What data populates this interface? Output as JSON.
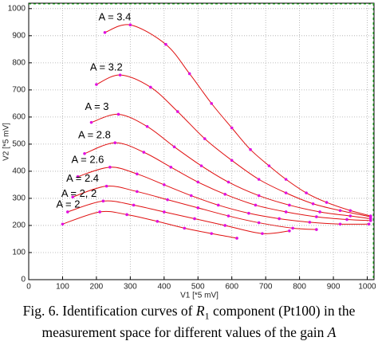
{
  "chart_data": {
    "type": "line",
    "x_label": "V1 [*5 mV]",
    "y_label": "V2 [*5 mV]",
    "xlim": [
      0,
      1020
    ],
    "ylim": [
      0,
      1020
    ],
    "xticks": [
      0,
      100,
      200,
      300,
      400,
      500,
      600,
      700,
      800,
      900,
      1000
    ],
    "yticks": [
      0,
      100,
      200,
      300,
      400,
      500,
      600,
      700,
      800,
      900,
      1000
    ],
    "grid": true,
    "color": "#e01010",
    "marker_color": "#e010e0",
    "series": [
      {
        "name": "A = 3.4",
        "x": [
          225,
          300,
          405,
          475,
          540,
          600,
          655,
          710,
          760,
          820,
          880,
          950,
          1010
        ],
        "values": [
          912,
          940,
          868,
          760,
          650,
          560,
          480,
          420,
          370,
          320,
          285,
          255,
          235
        ]
      },
      {
        "name": "A = 3.2",
        "x": [
          200,
          270,
          360,
          440,
          520,
          600,
          680,
          760,
          840,
          920,
          1010
        ],
        "values": [
          720,
          755,
          710,
          620,
          520,
          440,
          370,
          320,
          280,
          255,
          232
        ]
      },
      {
        "name": "A = 3",
        "x": [
          185,
          265,
          350,
          430,
          510,
          590,
          680,
          770,
          860,
          950,
          1010
        ],
        "values": [
          580,
          610,
          565,
          490,
          420,
          360,
          310,
          275,
          250,
          235,
          225
        ]
      },
      {
        "name": "A = 2.8",
        "x": [
          165,
          255,
          340,
          420,
          500,
          580,
          670,
          760,
          850,
          940,
          1010
        ],
        "values": [
          465,
          505,
          470,
          415,
          360,
          315,
          275,
          250,
          232,
          222,
          218
        ]
      },
      {
        "name": "A = 2.6",
        "x": [
          145,
          240,
          320,
          400,
          480,
          560,
          650,
          740,
          830,
          920,
          1005
        ],
        "values": [
          380,
          415,
          390,
          350,
          310,
          275,
          245,
          225,
          212,
          205,
          205
        ]
      },
      {
        "name": "A = 2.4",
        "x": [
          130,
          230,
          320,
          410,
          500,
          590,
          680,
          780,
          850
        ],
        "values": [
          305,
          345,
          325,
          295,
          265,
          235,
          210,
          190,
          185
        ]
      },
      {
        "name": "A = 2, 2",
        "x": [
          115,
          220,
          310,
          400,
          490,
          580,
          690,
          770
        ],
        "values": [
          250,
          290,
          275,
          250,
          225,
          200,
          170,
          180
        ]
      },
      {
        "name": "A = 2",
        "x": [
          100,
          210,
          290,
          380,
          460,
          540,
          615
        ],
        "values": [
          205,
          250,
          240,
          215,
          190,
          170,
          153
        ]
      }
    ]
  },
  "caption": {
    "prefix": "Fig. 6.  Identification curves of ",
    "symbol": "R",
    "subscript": "1",
    "middle": " component (Pt100) in the measurement space for different values of the gain ",
    "variable": "A"
  }
}
